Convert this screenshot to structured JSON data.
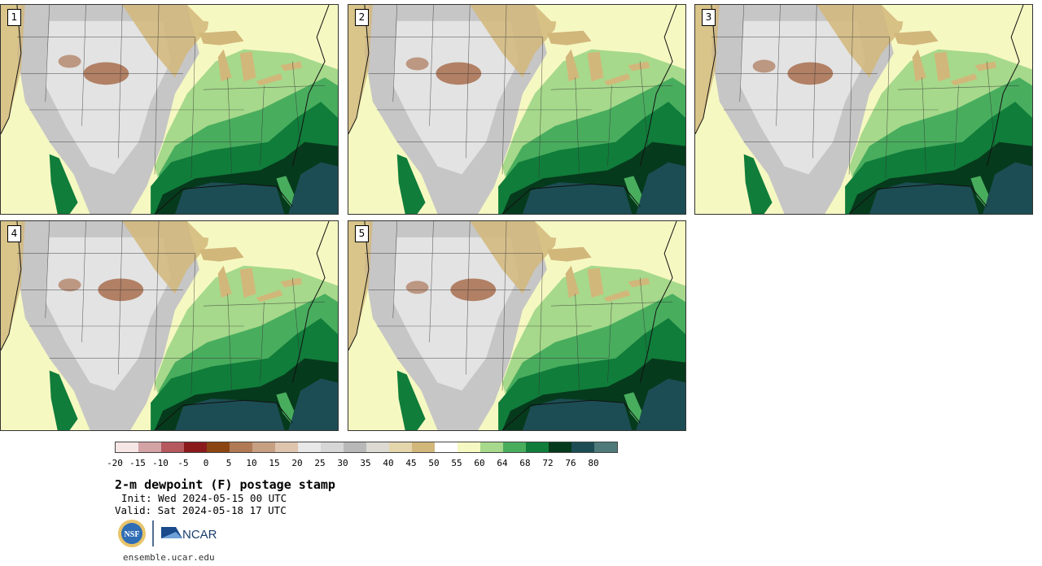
{
  "panels": [
    {
      "label": "1"
    },
    {
      "label": "2"
    },
    {
      "label": "3"
    },
    {
      "label": "4"
    },
    {
      "label": "5"
    }
  ],
  "colorbar": {
    "colors": [
      "#f6e6e6",
      "#d4a3a5",
      "#b5595f",
      "#8b1a1d",
      "#8b4513",
      "#b07a55",
      "#c79f83",
      "#dfc4ae",
      "#e8e8e8",
      "#d6d6d6",
      "#b8b8b8",
      "#dcdad3",
      "#e4d5ac",
      "#d2b77a",
      "#ffffff",
      "#f6f8c2",
      "#a6d98b",
      "#49ad5e",
      "#107d3a",
      "#063a1c",
      "#1d4d54",
      "#4e7a7a"
    ],
    "tick_labels": [
      "-20",
      "-15",
      "-10",
      "-5",
      "0",
      "5",
      "10",
      "15",
      "20",
      "25",
      "30",
      "35",
      "40",
      "45",
      "50",
      "55",
      "60",
      "64",
      "68",
      "72",
      "76",
      "80"
    ]
  },
  "title": "2-m dewpoint (F) postage stamp",
  "init": "Init: Wed 2024-05-15 00 UTC",
  "valid": "Valid: Sat 2024-05-18 17 UTC",
  "logos": {
    "nsf": "NSF",
    "ncar": "NCAR"
  },
  "site": "ensemble.ucar.edu",
  "map_colors": {
    "land_dry": "#f6f8c2",
    "arid_gray": "#c6c6c6",
    "light_gray": "#e3e3e3",
    "brown": "#a86f4f",
    "tan": "#d2b77a",
    "green_light": "#a6d98b",
    "green_mid": "#49ad5e",
    "green_dark": "#107d3a",
    "green_deep": "#063a1c",
    "teal": "#1d4d54",
    "lake": "#d2b77a",
    "border": "#333333"
  }
}
